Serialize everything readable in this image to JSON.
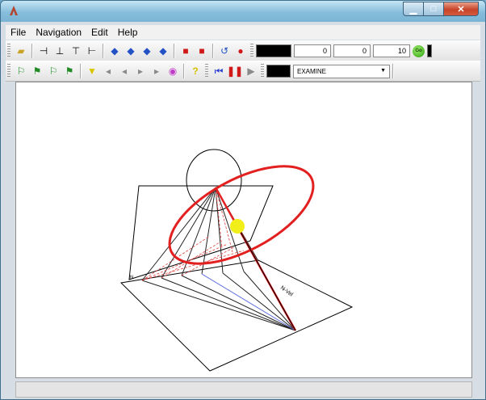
{
  "menu": {
    "file": "File",
    "navigation": "Navigation",
    "edit": "Edit",
    "help": "Help"
  },
  "toolbar": {
    "num1": "0",
    "num2": "0",
    "num3": "10",
    "go_label": "Go"
  },
  "navmode": {
    "selected": "EXAMINE"
  },
  "scene": {
    "label_small": "N",
    "label_angled": "N-Vel"
  },
  "colors": {
    "ellipse": "#e32020",
    "sun": "#f2ee1a",
    "blue_line": "#6070e0"
  },
  "icons": [
    "open-folder-icon",
    "arrow-left-bar-icon",
    "arrow-up-bar-icon",
    "arrow-down-bar-icon",
    "arrow-right-bar-icon",
    "rotate-icon",
    "lock-icon",
    "unlock-icon",
    "reset-icon",
    "record-icon",
    "walk-icon",
    "run-icon",
    "help-icon",
    "rewind-icon",
    "pause-icon",
    "play-icon"
  ]
}
